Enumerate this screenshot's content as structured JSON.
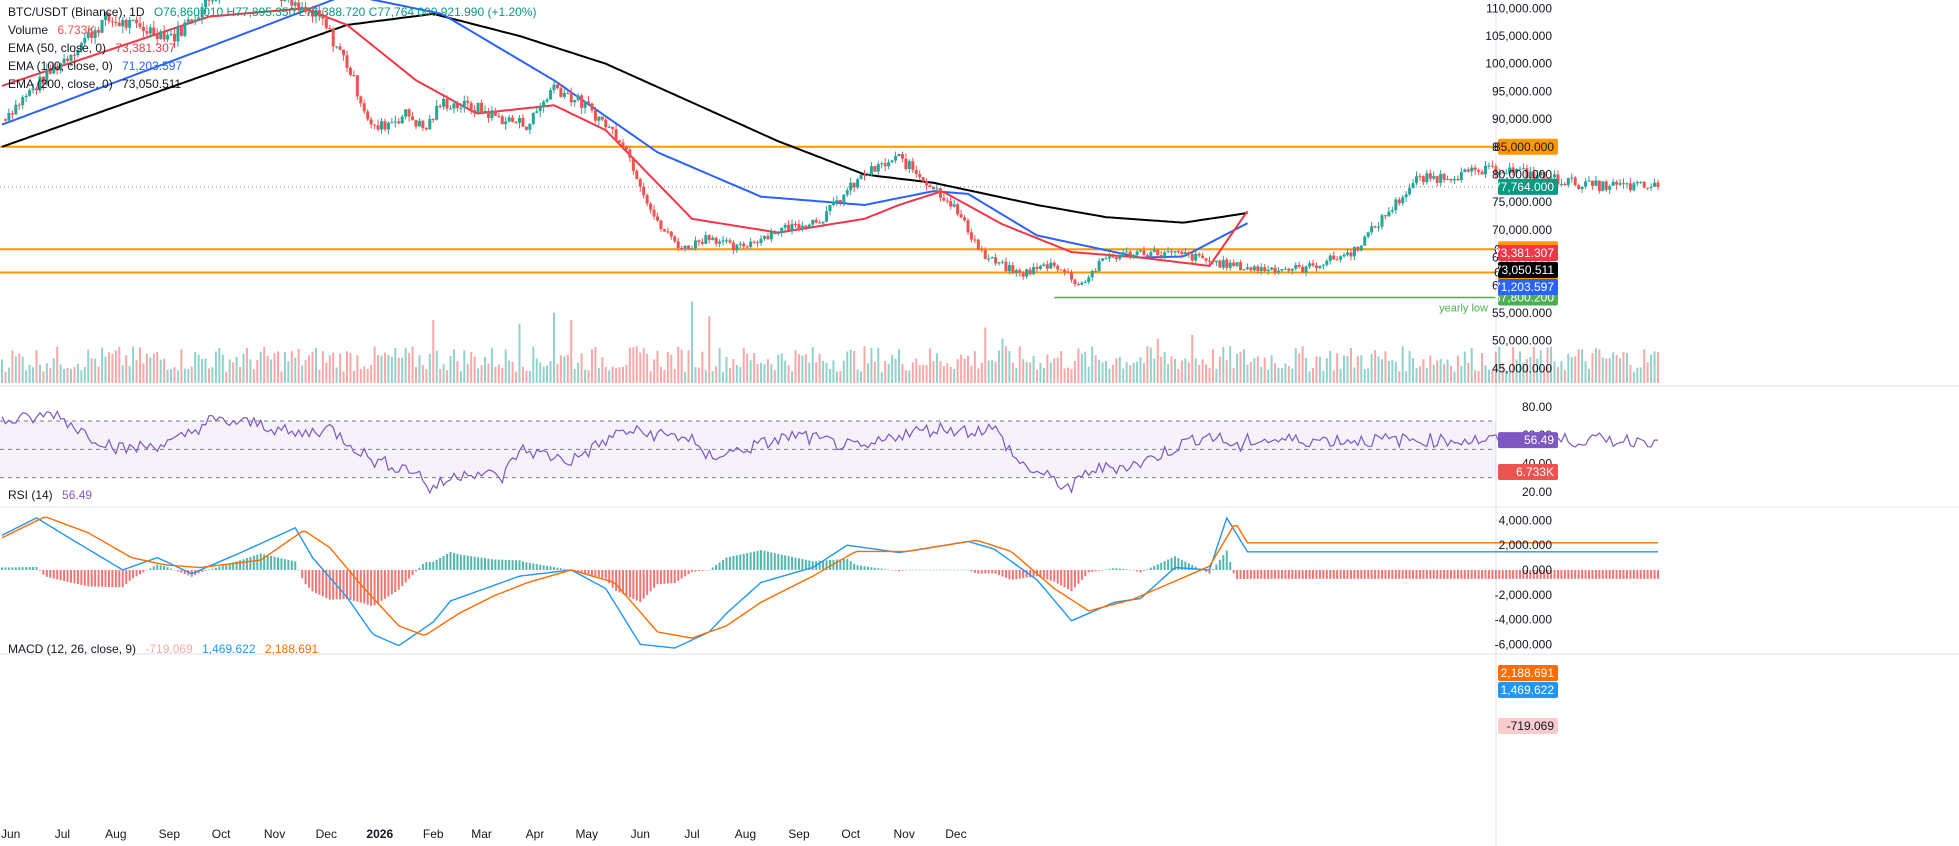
{
  "colors": {
    "up": "#26a69a",
    "down": "#ef5350",
    "ema50": "#f23645",
    "ema100": "#2962ff",
    "ema200": "#000000",
    "level": "#ff9800",
    "yearly_low": "#4caf50",
    "rsi": "#7e57c2",
    "macd": "#2196f3",
    "signal": "#ff6d00",
    "grid": "#f0f3fa"
  },
  "icons": [],
  "chart_data": [
    {
      "type": "candlestick",
      "legend": {
        "symbol": "BTC/USDT (Binance), 1D",
        "ohlc": "O76,860.010 H77,895.350 L76,388.720 C77,764.000 921.990 (+1.20%)",
        "volume_label": "Volume",
        "volume_value": "6.733K",
        "ema50_label": "EMA (50, close, 0)",
        "ema50_value": "73,381.307",
        "ema100_label": "EMA (100, close, 0)",
        "ema100_value": "71,203.597",
        "ema200_label": "EMA (200, close, 0)",
        "ema200_value": "73,050.511"
      },
      "ylim": [
        42000,
        111500
      ],
      "y_ticks": [
        "110,000.000",
        "105,000.000",
        "100,000.000",
        "95,000.000",
        "90,000.000",
        "85,000.000",
        "80,000.000",
        "75,000.000",
        "70,000.000",
        "65,000.000",
        "60,000.000",
        "55,000.000",
        "50,000.000",
        "45,000.000"
      ],
      "x_ticks": [
        "Jun",
        "Jul",
        "Aug",
        "Sep",
        "Oct",
        "Nov",
        "Dec",
        "2026",
        "Feb",
        "Mar",
        "Apr",
        "May",
        "Jun",
        "Jul",
        "Aug",
        "Sep",
        "Oct",
        "Nov",
        "Dec"
      ],
      "horizontal_levels": [
        {
          "value": 85000,
          "label": "85,000.000"
        },
        {
          "value": 66500,
          "label": "66,500.000"
        },
        {
          "value": 62300,
          "label": "62,300.000"
        }
      ],
      "yearly_low": {
        "value": 57800,
        "label": "57,800.200",
        "text": "yearly low"
      },
      "last_price": {
        "value": 77764,
        "label": "77,764.000"
      },
      "ema_tags": [
        {
          "value": 73381.307,
          "label": "73,381.307"
        },
        {
          "value": 73050.511,
          "label": "73,050.511"
        },
        {
          "value": 71203.597,
          "label": "71,203.597"
        }
      ],
      "volume_tag": "6.733K",
      "price_path_days": [
        0,
        60,
        100,
        125,
        150,
        170,
        185,
        200,
        215,
        235,
        245,
        255,
        275,
        290,
        305,
        320,
        340,
        360,
        380,
        395,
        410,
        425,
        450,
        475,
        490,
        500,
        520,
        535,
        550,
        570,
        590,
        610,
        625,
        640,
        660,
        685,
        705,
        725,
        755,
        783,
        820,
        870,
        920,
        960
      ],
      "price_path_values": [
        90000,
        108000,
        105000,
        113000,
        116000,
        110000,
        108000,
        100000,
        88000,
        91000,
        88000,
        93000,
        92000,
        90000,
        89000,
        96000,
        92000,
        86000,
        71000,
        66500,
        69000,
        66500,
        70000,
        72000,
        77000,
        80000,
        83000,
        79000,
        75000,
        65000,
        62000,
        64000,
        60000,
        65000,
        66000,
        65500,
        64000,
        63000,
        63000,
        66000,
        79000,
        81000,
        78000,
        77764
      ],
      "ema50_days": [
        0,
        120,
        175,
        200,
        240,
        275,
        320,
        350,
        400,
        450,
        500,
        520,
        545,
        580,
        620,
        660,
        700,
        722
      ],
      "ema50_values": [
        96000,
        108500,
        110000,
        107000,
        97000,
        91000,
        92500,
        88000,
        72000,
        69500,
        72000,
        74500,
        77000,
        71000,
        66000,
        65000,
        63500,
        73381
      ],
      "ema100_days": [
        0,
        120,
        200,
        255,
        320,
        380,
        440,
        500,
        540,
        560,
        600,
        660,
        685,
        722
      ],
      "ema100_values": [
        89000,
        103000,
        112500,
        109000,
        97000,
        84000,
        76000,
        74500,
        77000,
        76500,
        69000,
        65000,
        65200,
        71204
      ],
      "ema200_days": [
        0,
        100,
        200,
        250,
        300,
        350,
        450,
        500,
        540,
        600,
        640,
        685,
        722
      ],
      "ema200_values": [
        85000,
        96000,
        107000,
        109000,
        105000,
        100000,
        86000,
        80000,
        78500,
        74500,
        72300,
        71300,
        73051
      ],
      "volume_spike_days": [
        250,
        300,
        320,
        330,
        400,
        405,
        410,
        485,
        505,
        570,
        575,
        580,
        670,
        675,
        690
      ],
      "volume_spike_values": [
        17000,
        16000,
        19000,
        17000,
        22000,
        27000,
        18000,
        21000,
        14000,
        15000,
        17000,
        12000,
        12000,
        15000,
        13000
      ]
    },
    {
      "type": "line",
      "name_label": "RSI (14)",
      "value": "56.49",
      "ylim": [
        10,
        94
      ],
      "y_ticks": [
        "80.00",
        "60.00",
        "40.00",
        "20.00"
      ],
      "band": [
        30,
        70
      ],
      "mid": 50,
      "last_tag": "56.49",
      "path_days": [
        0,
        20,
        30,
        50,
        70,
        100,
        120,
        150,
        170,
        190,
        215,
        240,
        248,
        270,
        290,
        300,
        330,
        360,
        400,
        405,
        420,
        460,
        500,
        520,
        545,
        560,
        575,
        590,
        620,
        630,
        660,
        690,
        700,
        720,
        722
      ],
      "path_values": [
        70,
        72,
        76,
        60,
        50,
        55,
        70,
        68,
        60,
        65,
        42,
        35,
        22,
        35,
        30,
        50,
        42,
        63,
        58,
        45,
        47,
        60,
        50,
        61,
        65,
        63,
        65,
        40,
        22,
        35,
        40,
        57,
        60,
        50,
        56.49
      ]
    },
    {
      "type": "macd",
      "name_label": "MACD (12, 26, close, 9)",
      "hist_value": "-719.069",
      "macd_value": "1,469.622",
      "signal_value": "2,188.691",
      "ylim": [
        -6700,
        5000
      ],
      "y_ticks": [
        "4,000.000",
        "2,000.000",
        "0.000",
        "-2,000.000",
        "-4,000.000",
        "-6,000.000"
      ],
      "macd_path_days": [
        0,
        20,
        40,
        70,
        90,
        110,
        140,
        170,
        180,
        200,
        215,
        230,
        250,
        260,
        280,
        300,
        330,
        350,
        370,
        390,
        410,
        420,
        440,
        470,
        490,
        520,
        560,
        575,
        600,
        620,
        645,
        660,
        680,
        700,
        710,
        722
      ],
      "macd_path_values": [
        2800,
        4200,
        2500,
        0,
        1000,
        -300,
        1500,
        3400,
        1000,
        -2200,
        -5200,
        -6100,
        -4200,
        -2500,
        -1500,
        -500,
        0,
        -1500,
        -6000,
        -6300,
        -5000,
        -3500,
        -1000,
        200,
        2000,
        1400,
        2300,
        1700,
        -800,
        -4100,
        -2600,
        -2300,
        200,
        0,
        4200,
        1469.622
      ],
      "signal_path_days": [
        0,
        25,
        50,
        75,
        95,
        115,
        150,
        175,
        190,
        210,
        230,
        245,
        265,
        285,
        305,
        330,
        355,
        380,
        400,
        420,
        440,
        470,
        495,
        525,
        565,
        585,
        610,
        630,
        655,
        680,
        700,
        715,
        722
      ],
      "signal_path_values": [
        2600,
        4300,
        3000,
        1000,
        400,
        200,
        800,
        3200,
        1800,
        -1500,
        -4500,
        -5300,
        -3500,
        -2100,
        -1000,
        0,
        -1000,
        -5000,
        -5500,
        -4500,
        -2600,
        -500,
        1500,
        1500,
        2400,
        1500,
        -1500,
        -3300,
        -2400,
        -900,
        300,
        3800,
        2188.691
      ],
      "hist_tag": "-719.069",
      "macd_tag": "1,469.622",
      "signal_tag": "2,188.691"
    }
  ]
}
